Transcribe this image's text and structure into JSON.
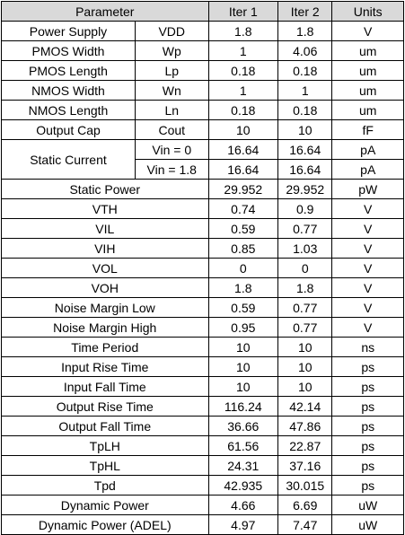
{
  "headers": [
    "Parameter",
    "Iter 1",
    "Iter 2",
    "Units"
  ],
  "rows": [
    {
      "name": "Power Supply",
      "sym": "VDD",
      "it1": "1.8",
      "it2": "1.8",
      "unit": "V"
    },
    {
      "name": "PMOS Width",
      "sym": "Wp",
      "it1": "1",
      "it2": "4.06",
      "unit": "um"
    },
    {
      "name": "PMOS Length",
      "sym": "Lp",
      "it1": "0.18",
      "it2": "0.18",
      "unit": "um"
    },
    {
      "name": "NMOS Width",
      "sym": "Wn",
      "it1": "1",
      "it2": "1",
      "unit": "um"
    },
    {
      "name": "NMOS Length",
      "sym": "Ln",
      "it1": "0.18",
      "it2": "0.18",
      "unit": "um"
    },
    {
      "name": "Output Cap",
      "sym": "Cout",
      "it1": "10",
      "it2": "10",
      "unit": "fF"
    }
  ],
  "static_current": {
    "name": "Static Current",
    "rows": [
      {
        "sym": "Vin = 0",
        "it1": "16.64",
        "it2": "16.64",
        "unit": "pA"
      },
      {
        "sym": "Vin = 1.8",
        "it1": "16.64",
        "it2": "16.64",
        "unit": "pA"
      }
    ]
  },
  "rows2": [
    {
      "name": "Static Power",
      "it1": "29.952",
      "it2": "29.952",
      "unit": "pW"
    },
    {
      "name": "VTH",
      "it1": "0.74",
      "it2": "0.9",
      "unit": "V"
    },
    {
      "name": "VIL",
      "it1": "0.59",
      "it2": "0.77",
      "unit": "V"
    },
    {
      "name": "VIH",
      "it1": "0.85",
      "it2": "1.03",
      "unit": "V"
    },
    {
      "name": "VOL",
      "it1": "0",
      "it2": "0",
      "unit": "V"
    },
    {
      "name": "VOH",
      "it1": "1.8",
      "it2": "1.8",
      "unit": "V"
    },
    {
      "name": "Noise Margin Low",
      "it1": "0.59",
      "it2": "0.77",
      "unit": "V"
    },
    {
      "name": "Noise Margin High",
      "it1": "0.95",
      "it2": "0.77",
      "unit": "V"
    },
    {
      "name": "Time Period",
      "it1": "10",
      "it2": "10",
      "unit": "ns"
    },
    {
      "name": "Input Rise Time",
      "it1": "10",
      "it2": "10",
      "unit": "ps"
    },
    {
      "name": "Input Fall Time",
      "it1": "10",
      "it2": "10",
      "unit": "ps"
    },
    {
      "name": "Output Rise Time",
      "it1": "116.24",
      "it2": "42.14",
      "unit": "ps"
    },
    {
      "name": "Output Fall Time",
      "it1": "36.66",
      "it2": "47.86",
      "unit": "ps"
    },
    {
      "name": "TpLH",
      "it1": "61.56",
      "it2": "22.87",
      "unit": "ps"
    },
    {
      "name": "TpHL",
      "it1": "24.31",
      "it2": "37.16",
      "unit": "ps"
    },
    {
      "name": "Tpd",
      "it1": "42.935",
      "it2": "30.015",
      "unit": "ps"
    },
    {
      "name": "Dynamic Power",
      "it1": "4.66",
      "it2": "6.69",
      "unit": "uW"
    },
    {
      "name": "Dynamic Power (ADEL)",
      "it1": "4.97",
      "it2": "7.47",
      "unit": "uW"
    }
  ]
}
